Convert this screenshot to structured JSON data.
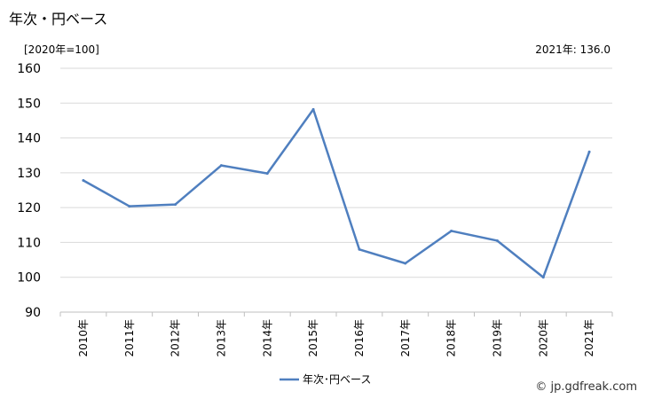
{
  "title": "年次・円ベース",
  "unit_label": "[2020年=100]",
  "latest_label": "2021年: 136.0",
  "credit": "© jp.gdfreak.com",
  "chart_data": {
    "type": "line",
    "categories": [
      "2010年",
      "2011年",
      "2012年",
      "2013年",
      "2014年",
      "2015年",
      "2016年",
      "2017年",
      "2018年",
      "2019年",
      "2020年",
      "2021年"
    ],
    "series": [
      {
        "name": "年次･円ベース",
        "color": "#4f7fbf",
        "values": [
          127.8,
          120.4,
          120.9,
          132.1,
          129.8,
          148.2,
          108.0,
          104.0,
          113.3,
          110.5,
          100.0,
          136.0
        ]
      }
    ],
    "ylim": [
      90,
      160
    ],
    "yticks": [
      "90",
      "100",
      "110",
      "120",
      "130",
      "140",
      "150",
      "160"
    ],
    "grid": true,
    "legend": "bottom-center"
  }
}
